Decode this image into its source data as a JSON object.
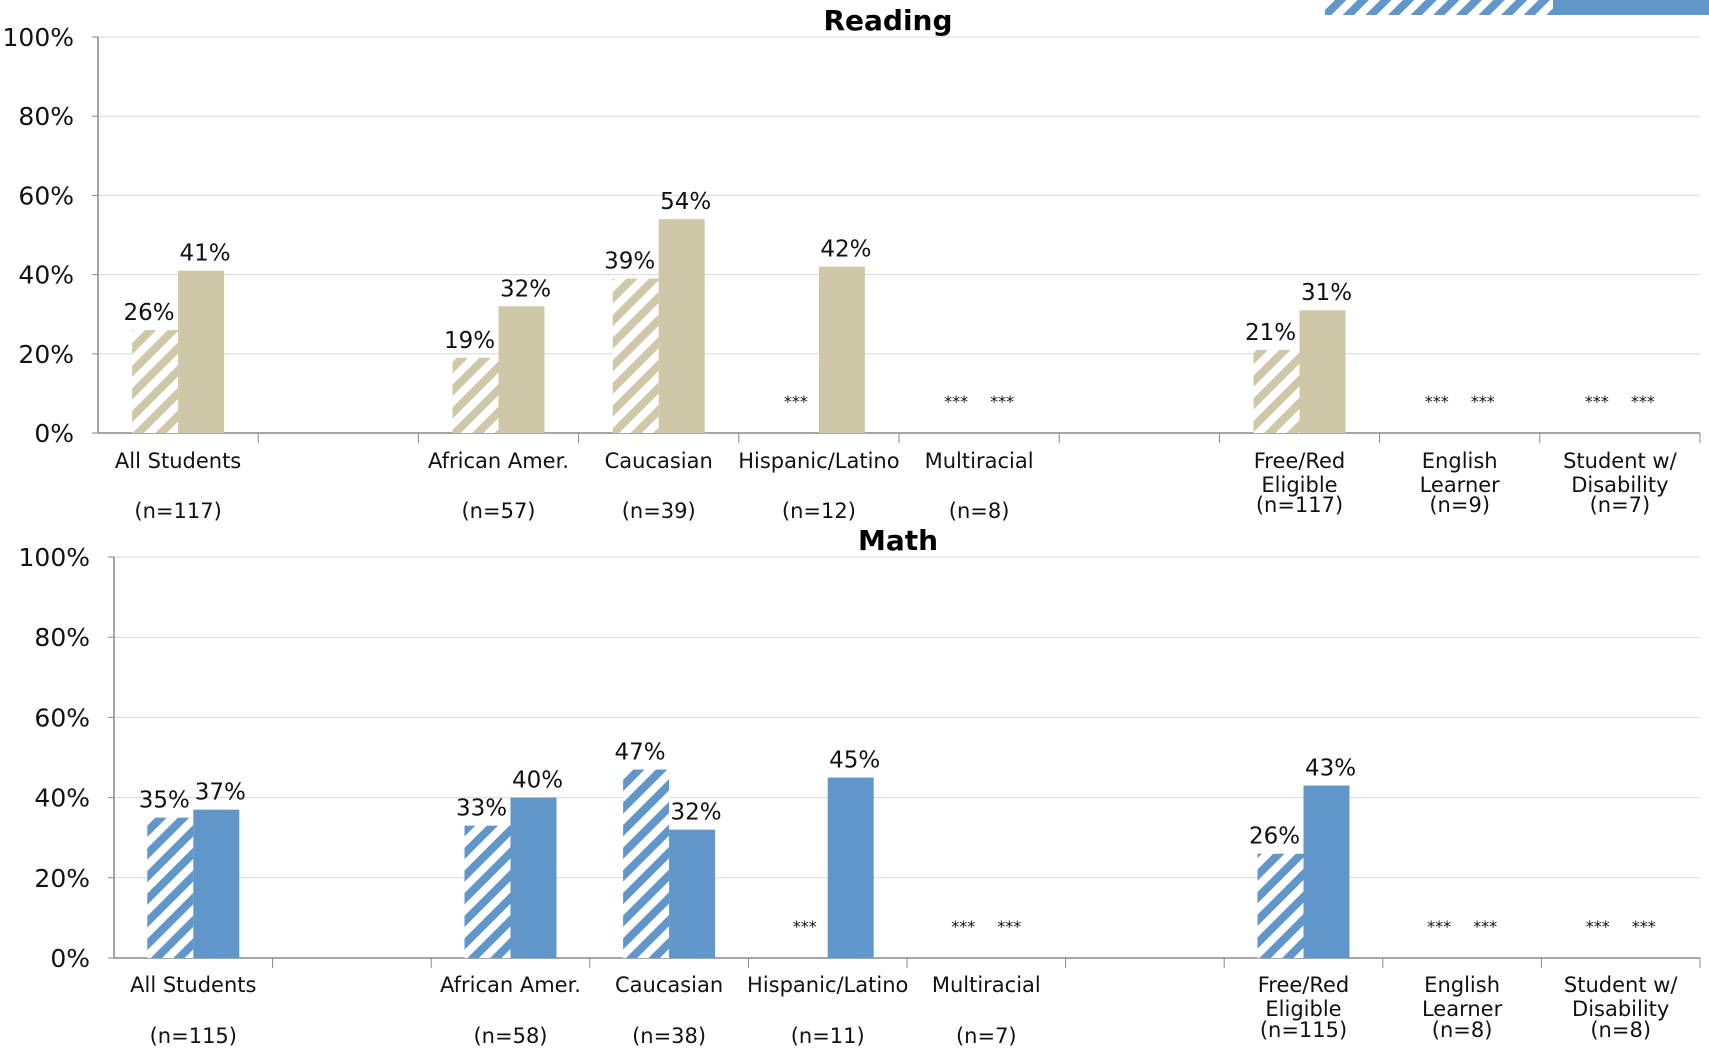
{
  "chart_data": [
    {
      "type": "bar",
      "title": "Reading",
      "ylim": [
        0,
        100
      ],
      "yticks": [
        "0%",
        "20%",
        "40%",
        "60%",
        "80%",
        "100%"
      ],
      "grid": true,
      "categories": [
        {
          "label": [
            "All Students"
          ],
          "n": "(n=117)"
        },
        {
          "label": [
            ""
          ],
          "n": ""
        },
        {
          "label": [
            "African Amer."
          ],
          "n": "(n=57)"
        },
        {
          "label": [
            "Caucasian"
          ],
          "n": "(n=39)"
        },
        {
          "label": [
            "Hispanic/Latino"
          ],
          "n": "(n=12)"
        },
        {
          "label": [
            "Multiracial"
          ],
          "n": "(n=8)"
        },
        {
          "label": [
            ""
          ],
          "n": ""
        },
        {
          "label": [
            "Free/Red",
            "Eligible"
          ],
          "n": "(n=117)"
        },
        {
          "label": [
            "English",
            "Learner"
          ],
          "n": "(n=9)"
        },
        {
          "label": [
            "Student w/",
            "Disability"
          ],
          "n": "(n=7)"
        }
      ],
      "series": [
        {
          "style": "hatched",
          "values": [
            26,
            null,
            19,
            39,
            null,
            null,
            null,
            21,
            null,
            null
          ],
          "labels": [
            "26%",
            "",
            "19%",
            "39%",
            "***",
            "***",
            "",
            "21%",
            "***",
            "***"
          ]
        },
        {
          "style": "solid",
          "values": [
            41,
            null,
            32,
            54,
            42,
            null,
            null,
            31,
            null,
            null
          ],
          "labels": [
            "41%",
            "",
            "32%",
            "54%",
            "42%",
            "***",
            "",
            "31%",
            "***",
            "***"
          ]
        }
      ],
      "color": "#cfc8a8"
    },
    {
      "type": "bar",
      "title": "Math",
      "ylim": [
        0,
        100
      ],
      "yticks": [
        "0%",
        "20%",
        "40%",
        "60%",
        "80%",
        "100%"
      ],
      "grid": true,
      "categories": [
        {
          "label": [
            "All Students"
          ],
          "n": "(n=115)"
        },
        {
          "label": [
            ""
          ],
          "n": ""
        },
        {
          "label": [
            "African Amer."
          ],
          "n": "(n=58)"
        },
        {
          "label": [
            "Caucasian"
          ],
          "n": "(n=38)"
        },
        {
          "label": [
            "Hispanic/Latino"
          ],
          "n": "(n=11)"
        },
        {
          "label": [
            "Multiracial"
          ],
          "n": "(n=7)"
        },
        {
          "label": [
            ""
          ],
          "n": ""
        },
        {
          "label": [
            "Free/Red",
            "Eligible"
          ],
          "n": "(n=115)"
        },
        {
          "label": [
            "English",
            "Learner"
          ],
          "n": "(n=8)"
        },
        {
          "label": [
            "Student w/",
            "Disability"
          ],
          "n": "(n=8)"
        }
      ],
      "series": [
        {
          "style": "hatched",
          "values": [
            35,
            null,
            33,
            47,
            null,
            null,
            null,
            26,
            null,
            null
          ],
          "labels": [
            "35%",
            "",
            "33%",
            "47%",
            "***",
            "***",
            "",
            "26%",
            "***",
            "***"
          ]
        },
        {
          "style": "solid",
          "values": [
            37,
            null,
            40,
            32,
            45,
            null,
            null,
            43,
            null,
            null
          ],
          "labels": [
            "37%",
            "",
            "40%",
            "32%",
            "45%",
            "***",
            "",
            "43%",
            "***",
            "***"
          ]
        }
      ],
      "color": "#6196cb"
    }
  ]
}
